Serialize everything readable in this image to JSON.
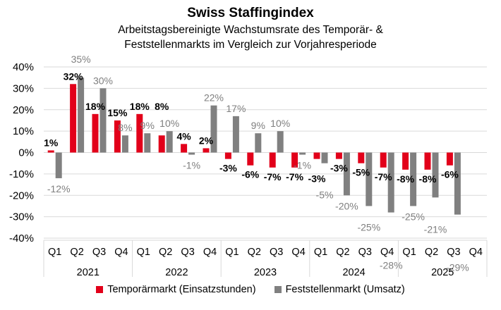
{
  "chart_data": {
    "type": "bar",
    "title": "Swiss Staffingindex",
    "subtitle": [
      "Arbeitstagsbereinigte Wachstumsrate des Temporär- &",
      "Feststellenmarkts im Vergleich zur Vorjahresperiode"
    ],
    "years": [
      "2021",
      "2022",
      "2023",
      "2024",
      "2025"
    ],
    "categories": [
      "Q1",
      "Q2",
      "Q3",
      "Q4",
      "Q1",
      "Q2",
      "Q3",
      "Q4",
      "Q1",
      "Q2",
      "Q3",
      "Q4",
      "Q1",
      "Q2",
      "Q3",
      "Q4",
      "Q1",
      "Q2",
      "Q3",
      "Q4"
    ],
    "ylim": [
      -40,
      40
    ],
    "yticks": [
      -40,
      -30,
      -20,
      -10,
      0,
      10,
      20,
      30,
      40
    ],
    "ytick_format": "%",
    "grid": true,
    "legend_position": "bottom",
    "series": [
      {
        "name": "Temporärmarkt (Einsatzstunden)",
        "color": "#E2001A",
        "values": [
          1,
          32,
          18,
          15,
          18,
          8,
          4,
          2,
          -3,
          -6,
          -7,
          -7,
          -3,
          -3,
          -5,
          -7,
          -8,
          -8,
          -6,
          null
        ]
      },
      {
        "name": "Feststellenmarkt (Umsatz)",
        "color": "#808080",
        "values": [
          -12,
          35,
          30,
          8,
          9,
          10,
          -1,
          22,
          17,
          9,
          10,
          -1,
          -5,
          -20,
          -25,
          -28,
          -25,
          -21,
          -29,
          null
        ]
      }
    ]
  }
}
